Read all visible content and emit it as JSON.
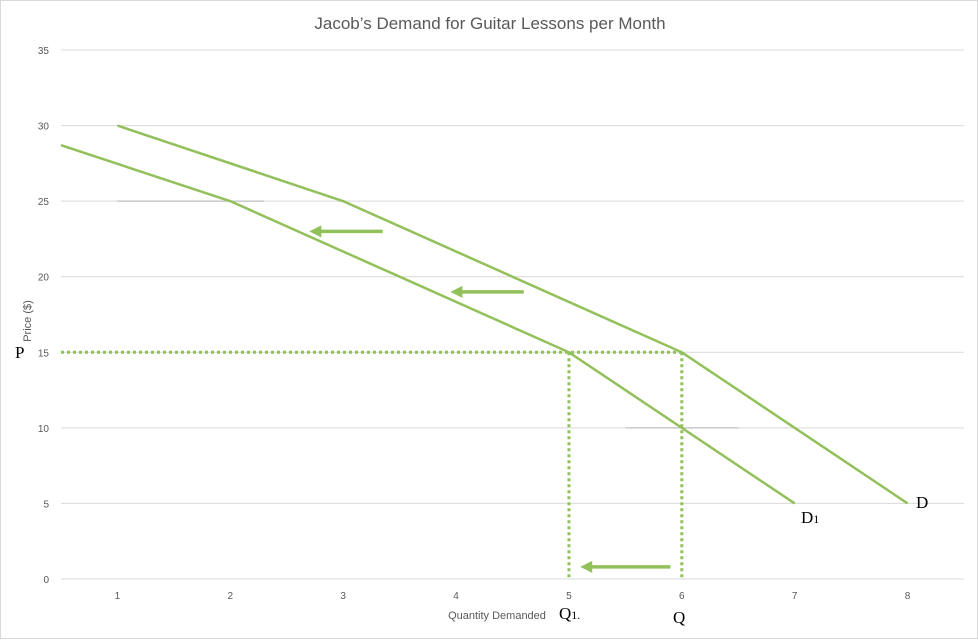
{
  "chart_data": {
    "type": "line",
    "title": "Jacob’s Demand for Guitar Lessons per Month",
    "xlabel": "Quantity Demanded",
    "ylabel": "Price ($)",
    "xlim": [
      0.5,
      8.5
    ],
    "ylim": [
      0,
      35
    ],
    "x_ticks": [
      "1",
      "2",
      "3",
      "4",
      "5",
      "6",
      "7",
      "8"
    ],
    "y_ticks": [
      "0",
      "5",
      "10",
      "15",
      "20",
      "25",
      "30",
      "35"
    ],
    "grid": true,
    "colors": {
      "series": "#92c05a",
      "grid": "#d9d9d9",
      "text": "#595959"
    },
    "series": [
      {
        "name": "D",
        "points": [
          [
            1,
            30
          ],
          [
            3,
            25
          ],
          [
            6,
            15
          ],
          [
            8,
            5
          ]
        ]
      },
      {
        "name": "D1",
        "points": [
          [
            0.5,
            28.7
          ],
          [
            2,
            25
          ],
          [
            5,
            15
          ],
          [
            7,
            5
          ]
        ]
      }
    ],
    "annotations": {
      "P": "P",
      "Q": "Q",
      "Q1_main": "Q",
      "Q1_sub": "1.",
      "D": "D",
      "D1_main": "D",
      "D1_sub": "1"
    },
    "guide_level": {
      "price": 15,
      "q1": 5,
      "q": 6
    },
    "arrows": [
      {
        "from": [
          3.35,
          23
        ],
        "to": [
          2.7,
          23
        ]
      },
      {
        "from": [
          4.6,
          19
        ],
        "to": [
          3.95,
          19
        ]
      },
      {
        "from": [
          5.9,
          0.8
        ],
        "to": [
          5.1,
          0.8
        ]
      }
    ]
  }
}
